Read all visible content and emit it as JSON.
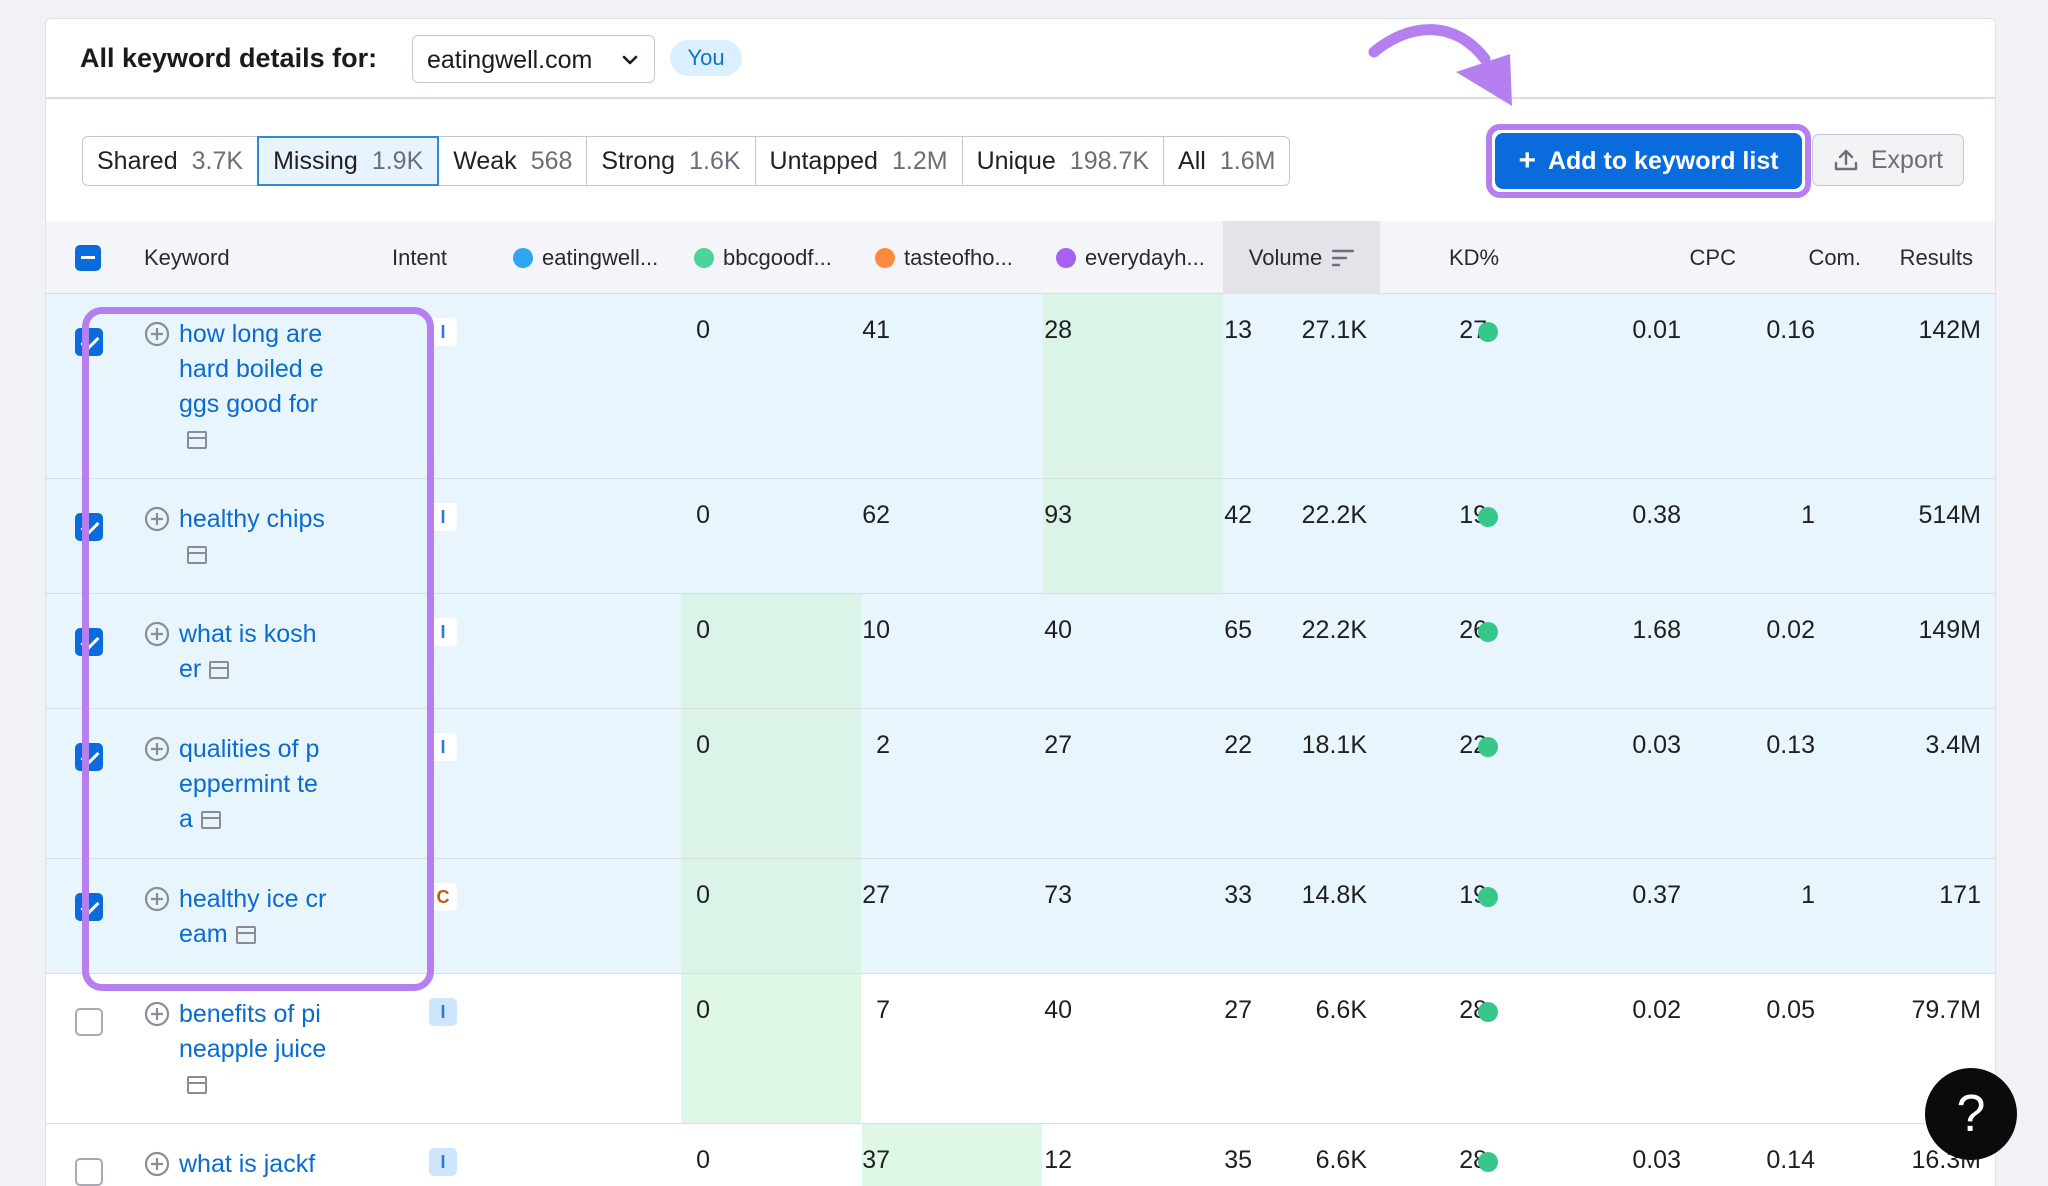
{
  "header": {
    "title": "All keyword details for:",
    "domain": "eatingwell.com",
    "you_badge": "You"
  },
  "tabs": [
    {
      "label": "Shared",
      "count": "3.7K"
    },
    {
      "label": "Missing",
      "count": "1.9K",
      "active": true
    },
    {
      "label": "Weak",
      "count": "568"
    },
    {
      "label": "Strong",
      "count": "1.6K"
    },
    {
      "label": "Untapped",
      "count": "1.2M"
    },
    {
      "label": "Unique",
      "count": "198.7K"
    },
    {
      "label": "All",
      "count": "1.6M"
    }
  ],
  "actions": {
    "add_label": "Add to keyword list",
    "add_icon": "plus-icon",
    "export_label": "Export",
    "export_icon": "upload-icon"
  },
  "columns": {
    "keyword": "Keyword",
    "intent": "Intent",
    "d1": "eatingwell...",
    "d2": "bbcgoodf...",
    "d3": "tasteofho...",
    "d4": "everydayh...",
    "volume": "Volume",
    "kd": "KD%",
    "cpc": "CPC",
    "com": "Com.",
    "results": "Results"
  },
  "domain_colors": {
    "d1": "#30a6f0",
    "d2": "#4bd59c",
    "d3": "#ff8a3d",
    "d4": "#a860f2"
  },
  "rows": [
    {
      "keyword": "how long are hard boiled eggs good for",
      "intent": "I",
      "d1": "0",
      "d2": "41",
      "d3": "28",
      "d4": "13",
      "volume": "27.1K",
      "kd": "27",
      "cpc": "0.01",
      "com": "0.16",
      "results": "142M",
      "checked": true
    },
    {
      "keyword": "healthy chips",
      "intent": "I",
      "d1": "0",
      "d2": "62",
      "d3": "93",
      "d4": "42",
      "volume": "22.2K",
      "kd": "19",
      "cpc": "0.38",
      "com": "1",
      "results": "514M",
      "checked": true
    },
    {
      "keyword": "what is kosher",
      "intent": "I",
      "d1": "0",
      "d2": "10",
      "d3": "40",
      "d4": "65",
      "volume": "22.2K",
      "kd": "26",
      "cpc": "1.68",
      "com": "0.02",
      "results": "149M",
      "checked": true
    },
    {
      "keyword": "qualities of peppermint tea",
      "intent": "I",
      "d1": "0",
      "d2": "2",
      "d3": "27",
      "d4": "22",
      "volume": "18.1K",
      "kd": "22",
      "cpc": "0.03",
      "com": "0.13",
      "results": "3.4M",
      "checked": true
    },
    {
      "keyword": "healthy ice cream",
      "intent": "C",
      "d1": "0",
      "d2": "27",
      "d3": "73",
      "d4": "33",
      "volume": "14.8K",
      "kd": "19",
      "cpc": "0.37",
      "com": "1",
      "results": "171",
      "checked": true
    },
    {
      "keyword": "benefits of pineapple juice",
      "intent": "I",
      "d1": "0",
      "d2": "7",
      "d3": "40",
      "d4": "27",
      "volume": "6.6K",
      "kd": "28",
      "cpc": "0.02",
      "com": "0.05",
      "results": "79.7M",
      "checked": false
    },
    {
      "keyword": "what is jackf",
      "intent": "I",
      "d1": "0",
      "d2": "37",
      "d3": "12",
      "d4": "35",
      "volume": "6.6K",
      "kd": "28",
      "cpc": "0.03",
      "com": "0.14",
      "results": "16.3M",
      "checked": false
    }
  ],
  "help_label": "?"
}
